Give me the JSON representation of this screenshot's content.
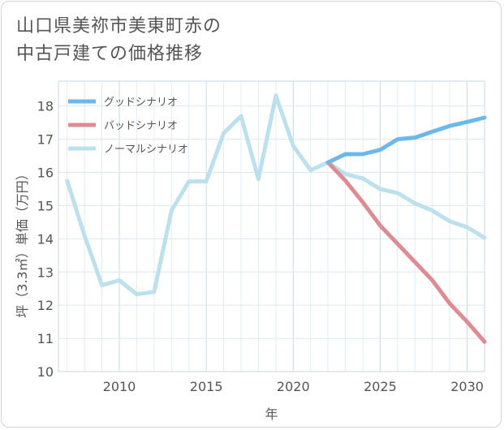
{
  "title": {
    "line1": "山口県美祢市美東町赤の",
    "line2": "中古戸建ての価格推移"
  },
  "chart_data": {
    "type": "line",
    "xlabel": "年",
    "ylabel": "坪（3.3㎡）単価（万円）",
    "xlim": [
      2006.5,
      2031
    ],
    "ylim": [
      10,
      18.75
    ],
    "xticks": [
      2010,
      2015,
      2020,
      2025,
      2030
    ],
    "yticks": [
      10,
      11,
      12,
      13,
      14,
      15,
      16,
      17,
      18
    ],
    "grid": true,
    "legend_position": "top-left",
    "series": [
      {
        "name": "グッドシナリオ",
        "color": "#6cb8ea",
        "x": [
          2022,
          2023,
          2024,
          2025,
          2026,
          2027,
          2028,
          2029,
          2030,
          2031
        ],
        "y": [
          16.3,
          16.55,
          16.55,
          16.68,
          17.0,
          17.05,
          17.23,
          17.4,
          17.52,
          17.65
        ]
      },
      {
        "name": "バッドシナリオ",
        "color": "#de8c93",
        "x": [
          2022,
          2023,
          2024,
          2025,
          2026,
          2027,
          2028,
          2029,
          2030,
          2031
        ],
        "y": [
          16.3,
          15.75,
          15.1,
          14.4,
          13.85,
          13.3,
          12.75,
          12.05,
          11.5,
          10.9
        ]
      },
      {
        "name": "ノーマルシナリオ",
        "color": "#bde0ee",
        "x": [
          2007,
          2008,
          2009,
          2010,
          2011,
          2012,
          2013,
          2014,
          2015,
          2016,
          2017,
          2018,
          2019,
          2020,
          2021,
          2022,
          2023,
          2024,
          2025,
          2026,
          2027,
          2028,
          2029,
          2030,
          2031
        ],
        "y": [
          15.75,
          14.1,
          12.6,
          12.75,
          12.33,
          12.4,
          14.85,
          15.73,
          15.73,
          17.18,
          17.7,
          15.8,
          18.32,
          16.8,
          16.07,
          16.3,
          15.95,
          15.82,
          15.5,
          15.38,
          15.07,
          14.85,
          14.53,
          14.35,
          14.03
        ]
      }
    ]
  }
}
